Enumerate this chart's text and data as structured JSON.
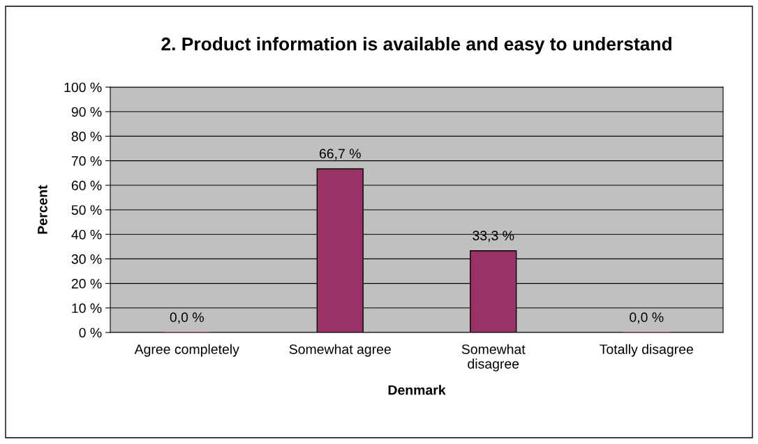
{
  "chart_data": {
    "type": "bar",
    "title": "2. Product information is available and easy to understand",
    "xlabel": "Denmark",
    "ylabel": "Percent",
    "categories": [
      "Agree completely",
      "Somewhat agree",
      "Somewhat\ndisagree",
      "Totally disagree"
    ],
    "values": [
      0,
      66.7,
      33.3,
      0
    ],
    "value_labels": [
      "0,0 %",
      "66,7 %",
      "33,3 %",
      "0,0 %"
    ],
    "color": "#993366",
    "ylim": [
      0,
      100
    ],
    "yticks": [
      {
        "value": 0,
        "label": "0 %"
      },
      {
        "value": 10,
        "label": "10 %"
      },
      {
        "value": 20,
        "label": "20 %"
      },
      {
        "value": 30,
        "label": "30 %"
      },
      {
        "value": 40,
        "label": "40 %"
      },
      {
        "value": 50,
        "label": "50 %"
      },
      {
        "value": 60,
        "label": "60 %"
      },
      {
        "value": 70,
        "label": "70 %"
      },
      {
        "value": 80,
        "label": "80 %"
      },
      {
        "value": 90,
        "label": "90 %"
      },
      {
        "value": 100,
        "label": "100 %"
      }
    ],
    "grid": "y",
    "legend": false
  }
}
